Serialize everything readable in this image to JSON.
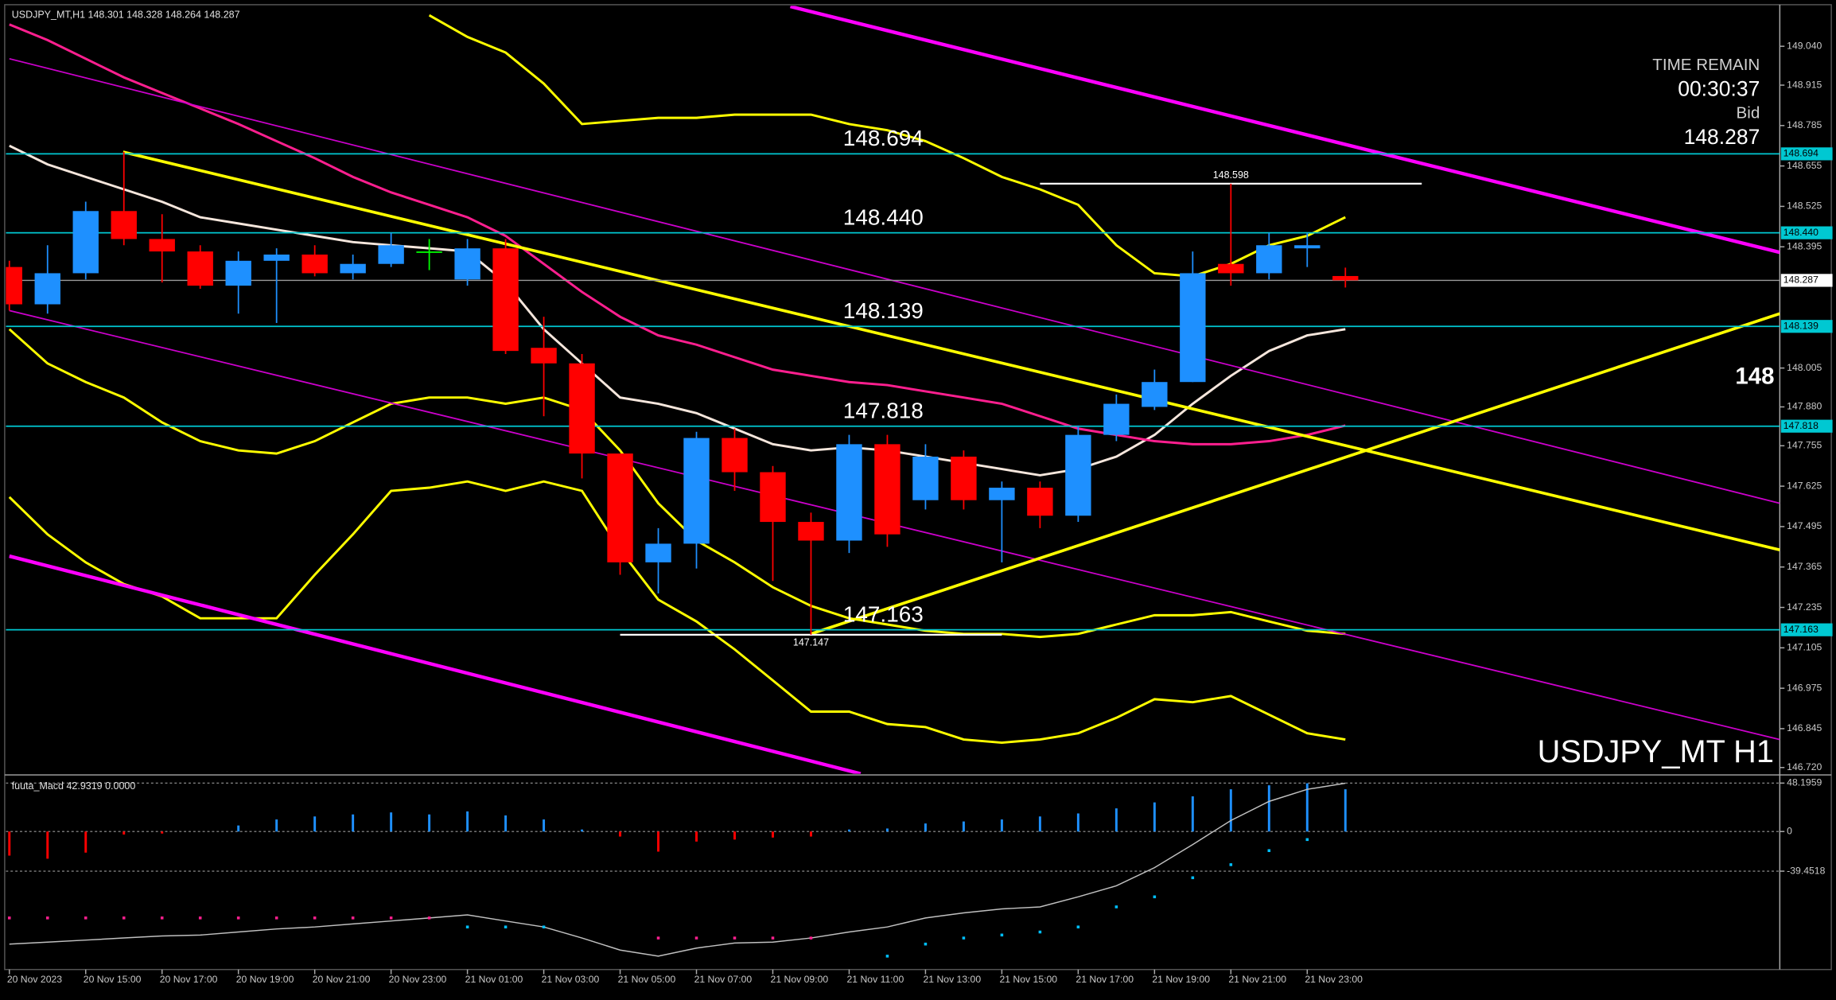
{
  "chart_data": [
    {
      "type": "candlestick",
      "title": "USDJPY_MT,H1  148.301 148.328 148.264 148.287",
      "watermark": "USDJPY_MT H1",
      "categories": [
        "20 Nov 2023",
        null,
        "20 Nov 15:00",
        null,
        "20 Nov 17:00",
        null,
        "20 Nov 19:00",
        null,
        "20 Nov 21:00",
        null,
        "20 Nov 23:00",
        null,
        "21 Nov 01:00",
        null,
        "21 Nov 03:00",
        null,
        "21 Nov 05:00",
        null,
        "21 Nov 07:00",
        null,
        "21 Nov 09:00",
        null,
        "21 Nov 11:00",
        null,
        "21 Nov 13:00",
        null,
        "21 Nov 15:00",
        null,
        "21 Nov 17:00",
        null,
        "21 Nov 19:00",
        null,
        "21 Nov 21:00",
        null,
        "21 Nov 23:00",
        null
      ],
      "open": [
        148.33,
        148.21,
        148.31,
        148.51,
        148.42,
        148.38,
        148.27,
        148.35,
        148.37,
        148.31,
        148.34,
        148.38,
        148.29,
        148.39,
        148.07,
        148.02,
        147.73,
        147.38,
        147.44,
        147.78,
        147.67,
        147.51,
        147.45,
        147.76,
        147.58,
        147.72,
        147.58,
        147.62,
        147.53,
        147.79,
        147.88,
        147.96,
        148.34,
        148.31,
        148.39,
        148.301
      ],
      "high": [
        148.35,
        148.4,
        148.54,
        148.7,
        148.5,
        148.4,
        148.38,
        148.39,
        148.4,
        148.37,
        148.44,
        148.42,
        148.42,
        148.42,
        148.17,
        148.05,
        147.73,
        147.49,
        147.8,
        147.81,
        147.69,
        147.54,
        147.79,
        147.79,
        147.76,
        147.74,
        147.64,
        147.64,
        147.82,
        147.92,
        148.0,
        148.38,
        148.598,
        148.44,
        148.44,
        148.328
      ],
      "low": [
        148.19,
        148.18,
        148.29,
        148.4,
        148.28,
        148.26,
        148.18,
        148.15,
        148.3,
        148.29,
        148.33,
        148.32,
        148.27,
        148.05,
        147.85,
        147.65,
        147.34,
        147.28,
        147.36,
        147.61,
        147.32,
        147.147,
        147.41,
        147.43,
        147.55,
        147.55,
        147.38,
        147.49,
        147.51,
        147.77,
        147.87,
        147.96,
        148.27,
        148.29,
        148.33,
        148.264
      ],
      "close": [
        148.21,
        148.31,
        148.51,
        148.42,
        148.38,
        148.27,
        148.35,
        148.37,
        148.31,
        148.34,
        148.4,
        148.38,
        148.39,
        148.06,
        148.02,
        147.73,
        147.38,
        147.44,
        147.78,
        147.67,
        147.51,
        147.45,
        147.76,
        147.47,
        147.72,
        147.58,
        147.62,
        147.53,
        147.79,
        147.89,
        147.96,
        148.31,
        148.31,
        148.4,
        148.4,
        148.287
      ],
      "bull_color": "#1e90ff",
      "bear_color": "#ff0000",
      "doji_color": "#00ff00",
      "xlim": [
        0,
        46.38
      ],
      "ylim": [
        146.7,
        149.17
      ],
      "yticks": [
        {
          "value": 149.04,
          "label": "149.040"
        },
        148.915,
        148.785,
        148.655,
        148.525,
        148.395,
        148.005,
        {
          "value": 147.88,
          "label": "147.880"
        },
        147.755,
        147.625,
        147.495,
        147.365,
        147.235,
        147.105,
        146.975,
        146.845,
        {
          "value": 146.72,
          "label": "146.720"
        }
      ],
      "overlays": [
        {
          "color": "#f5e6dc",
          "width": 2,
          "values": [
            148.72,
            148.66,
            148.62,
            148.58,
            148.54,
            148.49,
            148.47,
            148.45,
            148.43,
            148.41,
            148.4,
            148.39,
            148.38,
            148.28,
            148.13,
            148.02,
            147.91,
            147.89,
            147.86,
            147.81,
            147.76,
            147.74,
            147.75,
            147.74,
            147.72,
            147.7,
            147.68,
            147.66,
            147.68,
            147.72,
            147.79,
            147.89,
            147.98,
            148.06,
            148.11,
            148.13
          ]
        },
        {
          "color": "#ff1f8f",
          "width": 2,
          "values": [
            149.11,
            149.06,
            149.0,
            148.94,
            148.89,
            148.84,
            148.79,
            148.735,
            148.68,
            148.62,
            148.57,
            148.53,
            148.49,
            148.43,
            148.34,
            148.25,
            148.17,
            148.11,
            148.08,
            148.04,
            148.0,
            147.98,
            147.96,
            147.95,
            147.93,
            147.91,
            147.89,
            147.85,
            147.81,
            147.79,
            147.77,
            147.76,
            147.76,
            147.77,
            147.79,
            147.82
          ]
        },
        {
          "color": "#ffff00",
          "width": 2,
          "values": [
            null,
            null,
            null,
            null,
            null,
            null,
            null,
            null,
            null,
            null,
            null,
            149.14,
            149.07,
            149.02,
            148.92,
            148.79,
            148.8,
            148.81,
            148.81,
            148.82,
            148.82,
            148.82,
            148.79,
            148.77,
            148.735,
            148.68,
            148.62,
            148.58,
            148.53,
            148.4,
            148.31,
            148.3,
            148.34,
            148.4,
            148.43,
            148.49
          ]
        },
        {
          "color": "#ffff00",
          "width": 2,
          "values": [
            148.13,
            148.02,
            147.96,
            147.91,
            147.83,
            147.77,
            147.74,
            147.73,
            147.77,
            147.83,
            147.89,
            147.91,
            147.91,
            147.89,
            147.91,
            147.87,
            147.74,
            147.57,
            147.45,
            147.38,
            147.3,
            147.24,
            147.2,
            147.18,
            147.16,
            147.15,
            147.15,
            147.14,
            147.15,
            147.18,
            147.21,
            147.21,
            147.22,
            147.19,
            147.16,
            147.15
          ]
        },
        {
          "color": "#ffff00",
          "width": 2,
          "values": [
            147.59,
            147.47,
            147.38,
            147.31,
            147.27,
            147.2,
            147.2,
            147.2,
            147.34,
            147.47,
            147.61,
            147.62,
            147.64,
            147.61,
            147.64,
            147.61,
            147.42,
            147.26,
            147.19,
            147.1,
            147.0,
            146.9,
            146.9,
            146.86,
            146.85,
            146.81,
            146.8,
            146.81,
            146.83,
            146.88,
            146.94,
            146.93,
            146.95,
            146.89,
            146.83,
            146.81
          ]
        }
      ],
      "trend_lines": [
        {
          "color": "#ff00ff",
          "width": 3,
          "x": [
            20.46,
            46.38
          ],
          "y": [
            149.168,
            148.377
          ]
        },
        {
          "color": "#ff00ff",
          "width": 3,
          "x": [
            0,
            22.3
          ],
          "y": [
            147.4,
            146.7
          ]
        },
        {
          "color": "#cc00cc",
          "width": 1.2,
          "x": [
            0,
            46.38
          ],
          "y": [
            149.0,
            147.57
          ]
        },
        {
          "color": "#cc00cc",
          "width": 1.2,
          "x": [
            0,
            46.38
          ],
          "y": [
            148.19,
            146.81
          ]
        },
        {
          "color": "#ffff00",
          "width": 2.5,
          "x": [
            2.98,
            46.38
          ],
          "y": [
            148.7,
            147.42
          ]
        },
        {
          "color": "#ffff00",
          "width": 2.5,
          "x": [
            21.0,
            46.38
          ],
          "y": [
            147.15,
            148.18
          ]
        }
      ],
      "levels": [
        148.694,
        {
          "value": 148.44,
          "label": "148.440"
        },
        148.139,
        147.818,
        147.163
      ],
      "level_color": "#00c8d2",
      "bid": 148.287,
      "markers": [
        {
          "value": 148.598,
          "x": [
            27,
            37
          ]
        },
        {
          "value": 147.147,
          "x": [
            16,
            26
          ]
        }
      ],
      "cut_label": "148",
      "info": {
        "time_remain_label": "TIME REMAIN",
        "time_remain": "00:30:37",
        "bid_label": "Bid",
        "bid": 148.287
      }
    },
    {
      "type": "macd",
      "title": "fuuta_Macd 42.9319  0.0000",
      "histogram": [
        -24,
        -27,
        -21,
        -3,
        -2,
        0,
        6,
        12,
        15,
        17,
        19,
        17,
        20,
        16,
        12,
        2,
        -5,
        -20,
        -10,
        -8,
        -6,
        -5,
        2,
        3,
        8,
        10,
        12,
        15,
        18,
        23,
        29,
        35,
        42,
        46,
        48,
        42
      ],
      "pos_color": "#1e90ff",
      "neg_color": "#ff0000",
      "signal": {
        "color": "#c0c0c0",
        "values": [
          -112,
          -110,
          -108,
          -106,
          -104,
          -103,
          -100,
          -97,
          -95,
          -92,
          -89,
          -86,
          -83,
          -89,
          -95,
          -106,
          -118,
          -124,
          -116,
          -111,
          -110,
          -106,
          -100,
          -95,
          -86,
          -81,
          -77,
          -75,
          -65,
          -54,
          -36,
          -13,
          11,
          30,
          42,
          48
        ]
      },
      "dots": [
        {
          "color": "#ff1f8f",
          "values": [
            -86,
            -86,
            -86,
            -86,
            -86,
            -86,
            -86,
            -86,
            -86,
            -86,
            -86,
            -86,
            null,
            null,
            null,
            null,
            null,
            -106,
            -106,
            -106,
            -106,
            -106,
            null,
            null,
            null,
            null,
            null,
            null,
            null,
            null,
            null,
            null,
            null,
            null,
            null,
            null
          ]
        },
        {
          "color": "#00bfff",
          "values": [
            null,
            null,
            null,
            null,
            null,
            null,
            null,
            null,
            null,
            null,
            null,
            null,
            -95,
            -95,
            -95,
            null,
            null,
            null,
            null,
            null,
            null,
            null,
            null,
            -124,
            -112,
            -106,
            -103,
            -100,
            -95,
            -75,
            -65,
            -46,
            -33,
            -19,
            -8,
            null
          ]
        }
      ],
      "ylim": [
        -135,
        54
      ],
      "yticks": [
        48.1959,
        0,
        -39.4518
      ]
    }
  ]
}
